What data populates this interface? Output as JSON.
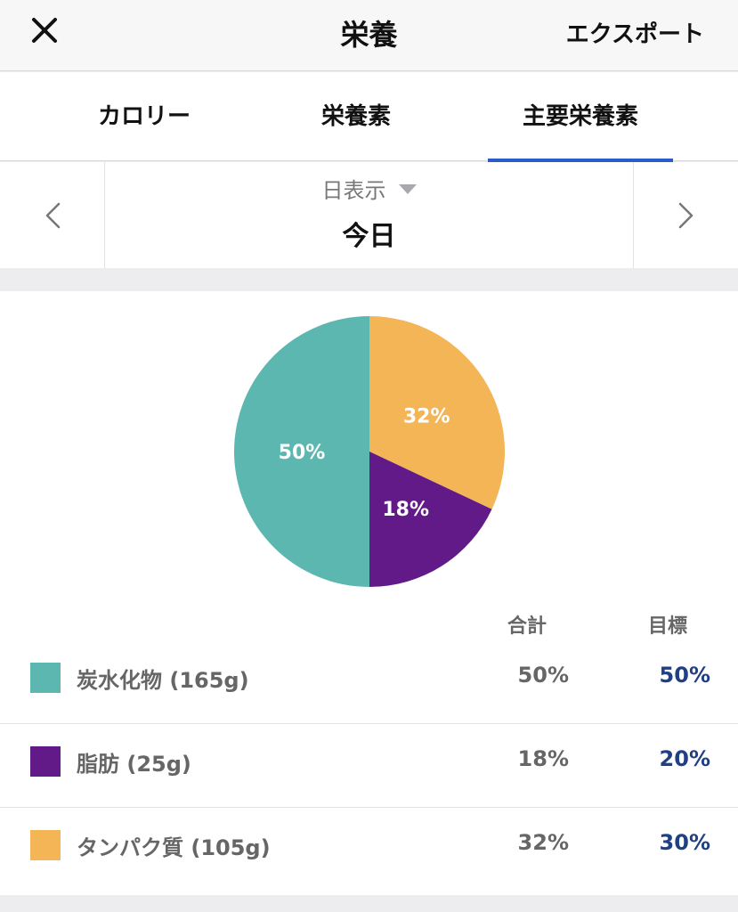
{
  "header": {
    "title": "栄養",
    "export_label": "エクスポート"
  },
  "tabs": [
    {
      "label": "カロリー",
      "active": false
    },
    {
      "label": "栄養素",
      "active": false
    },
    {
      "label": "主要栄養素",
      "active": true
    }
  ],
  "date_nav": {
    "view_mode": "日表示",
    "date": "今日"
  },
  "chart_data": {
    "type": "pie",
    "slices": [
      {
        "label": "炭水化物 (165g)",
        "value": 50,
        "display": "50%",
        "color": "#5bb7b0"
      },
      {
        "label": "脂肪 (25g)",
        "value": 18,
        "display": "18%",
        "color": "#621a89"
      },
      {
        "label": "タンパク質 (105g)",
        "value": 32,
        "display": "32%",
        "color": "#f3b556"
      }
    ]
  },
  "table": {
    "headers": {
      "total": "合計",
      "goal": "目標"
    },
    "rows": [
      {
        "label": "炭水化物 (165g)",
        "total": "50%",
        "goal": "50%",
        "color": "#5bb7b0"
      },
      {
        "label": "脂肪 (25g)",
        "total": "18%",
        "goal": "20%",
        "color": "#621a89"
      },
      {
        "label": "タンパク質 (105g)",
        "total": "32%",
        "goal": "30%",
        "color": "#f3b556"
      }
    ]
  },
  "colors": {
    "accent": "#2a5cc7",
    "goal_text": "#1f3f86"
  }
}
